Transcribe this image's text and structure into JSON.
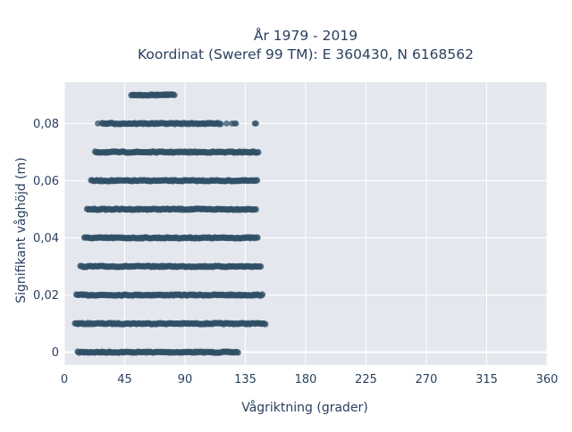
{
  "chart_data": {
    "type": "scatter",
    "title": "År 1979 - 2019",
    "subtitle": "Koordinat (Sweref 99 TM): E 360430, N 6168562",
    "xlabel": "Vågriktning (grader)",
    "ylabel": "Signifikant våghöjd (m)",
    "xlim": [
      0,
      360
    ],
    "ylim": [
      -0.0045,
      0.0945
    ],
    "x_ticks": [
      0,
      45,
      90,
      135,
      180,
      225,
      270,
      315,
      360
    ],
    "x_tick_labels": [
      "0",
      "45",
      "90",
      "135",
      "180",
      "225",
      "270",
      "315",
      "360"
    ],
    "y_ticks": [
      0,
      0.02,
      0.04,
      0.06,
      0.08
    ],
    "y_tick_labels": [
      "0",
      "0,02",
      "0,04",
      "0,06",
      "0,08"
    ],
    "grid": true,
    "legend": "none",
    "marker_color": "#2f5066",
    "plot_background": "#e5e7ef",
    "series": [
      {
        "description_levels": "Observations grouped at discrete wave heights; each level spans a direction range",
        "levels": [
          {
            "y": 0.0,
            "x_min": 10,
            "x_max": 130,
            "isolated_x": [
              28,
              33
            ]
          },
          {
            "y": 0.01,
            "x_min": 8,
            "x_max": 150,
            "isolated_x": []
          },
          {
            "y": 0.02,
            "x_min": 9,
            "x_max": 148,
            "isolated_x": []
          },
          {
            "y": 0.03,
            "x_min": 12,
            "x_max": 147,
            "isolated_x": []
          },
          {
            "y": 0.04,
            "x_min": 15,
            "x_max": 145,
            "isolated_x": []
          },
          {
            "y": 0.05,
            "x_min": 17,
            "x_max": 143,
            "isolated_x": []
          },
          {
            "y": 0.06,
            "x_min": 20,
            "x_max": 144,
            "isolated_x": []
          },
          {
            "y": 0.07,
            "x_min": 23,
            "x_max": 145,
            "isolated_x": []
          },
          {
            "y": 0.08,
            "x_min": 28,
            "x_max": 117,
            "isolated_x": [
              25,
              121,
              125,
              127,
              128,
              142,
              143
            ]
          },
          {
            "y": 0.09,
            "x_min": 50,
            "x_max": 83,
            "isolated_x": []
          }
        ]
      }
    ]
  }
}
